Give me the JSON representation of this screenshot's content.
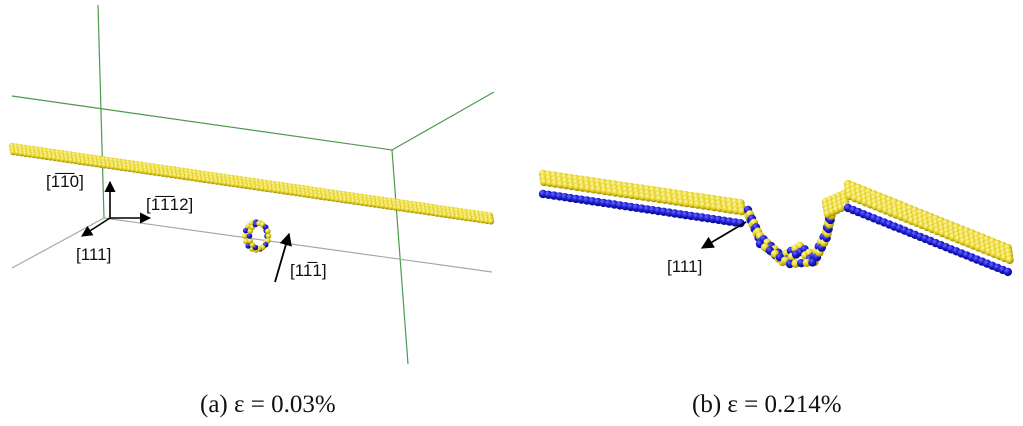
{
  "panels": [
    {
      "caption": "(a) ε = 0.03%",
      "direction_labels": [
        "[1̅1̅0]",
        "[1̅1̅12]",
        "[111]",
        "[11̅1]"
      ]
    },
    {
      "caption": "(b) ε = 0.214%",
      "direction_labels": [
        "[111]"
      ]
    }
  ],
  "colors": {
    "atom_yellow": "#e6d21c",
    "atom_yellow_highlight": "#fbf39a",
    "atom_blue": "#1a1ad2",
    "box_green": "#4c9a4c",
    "box_gray": "#a8a8a8",
    "arrow": "#000000"
  },
  "icons": {
    "defect_loop": "dislocation-loop-icon",
    "dislocation_line": "dislocation-line-icon"
  }
}
